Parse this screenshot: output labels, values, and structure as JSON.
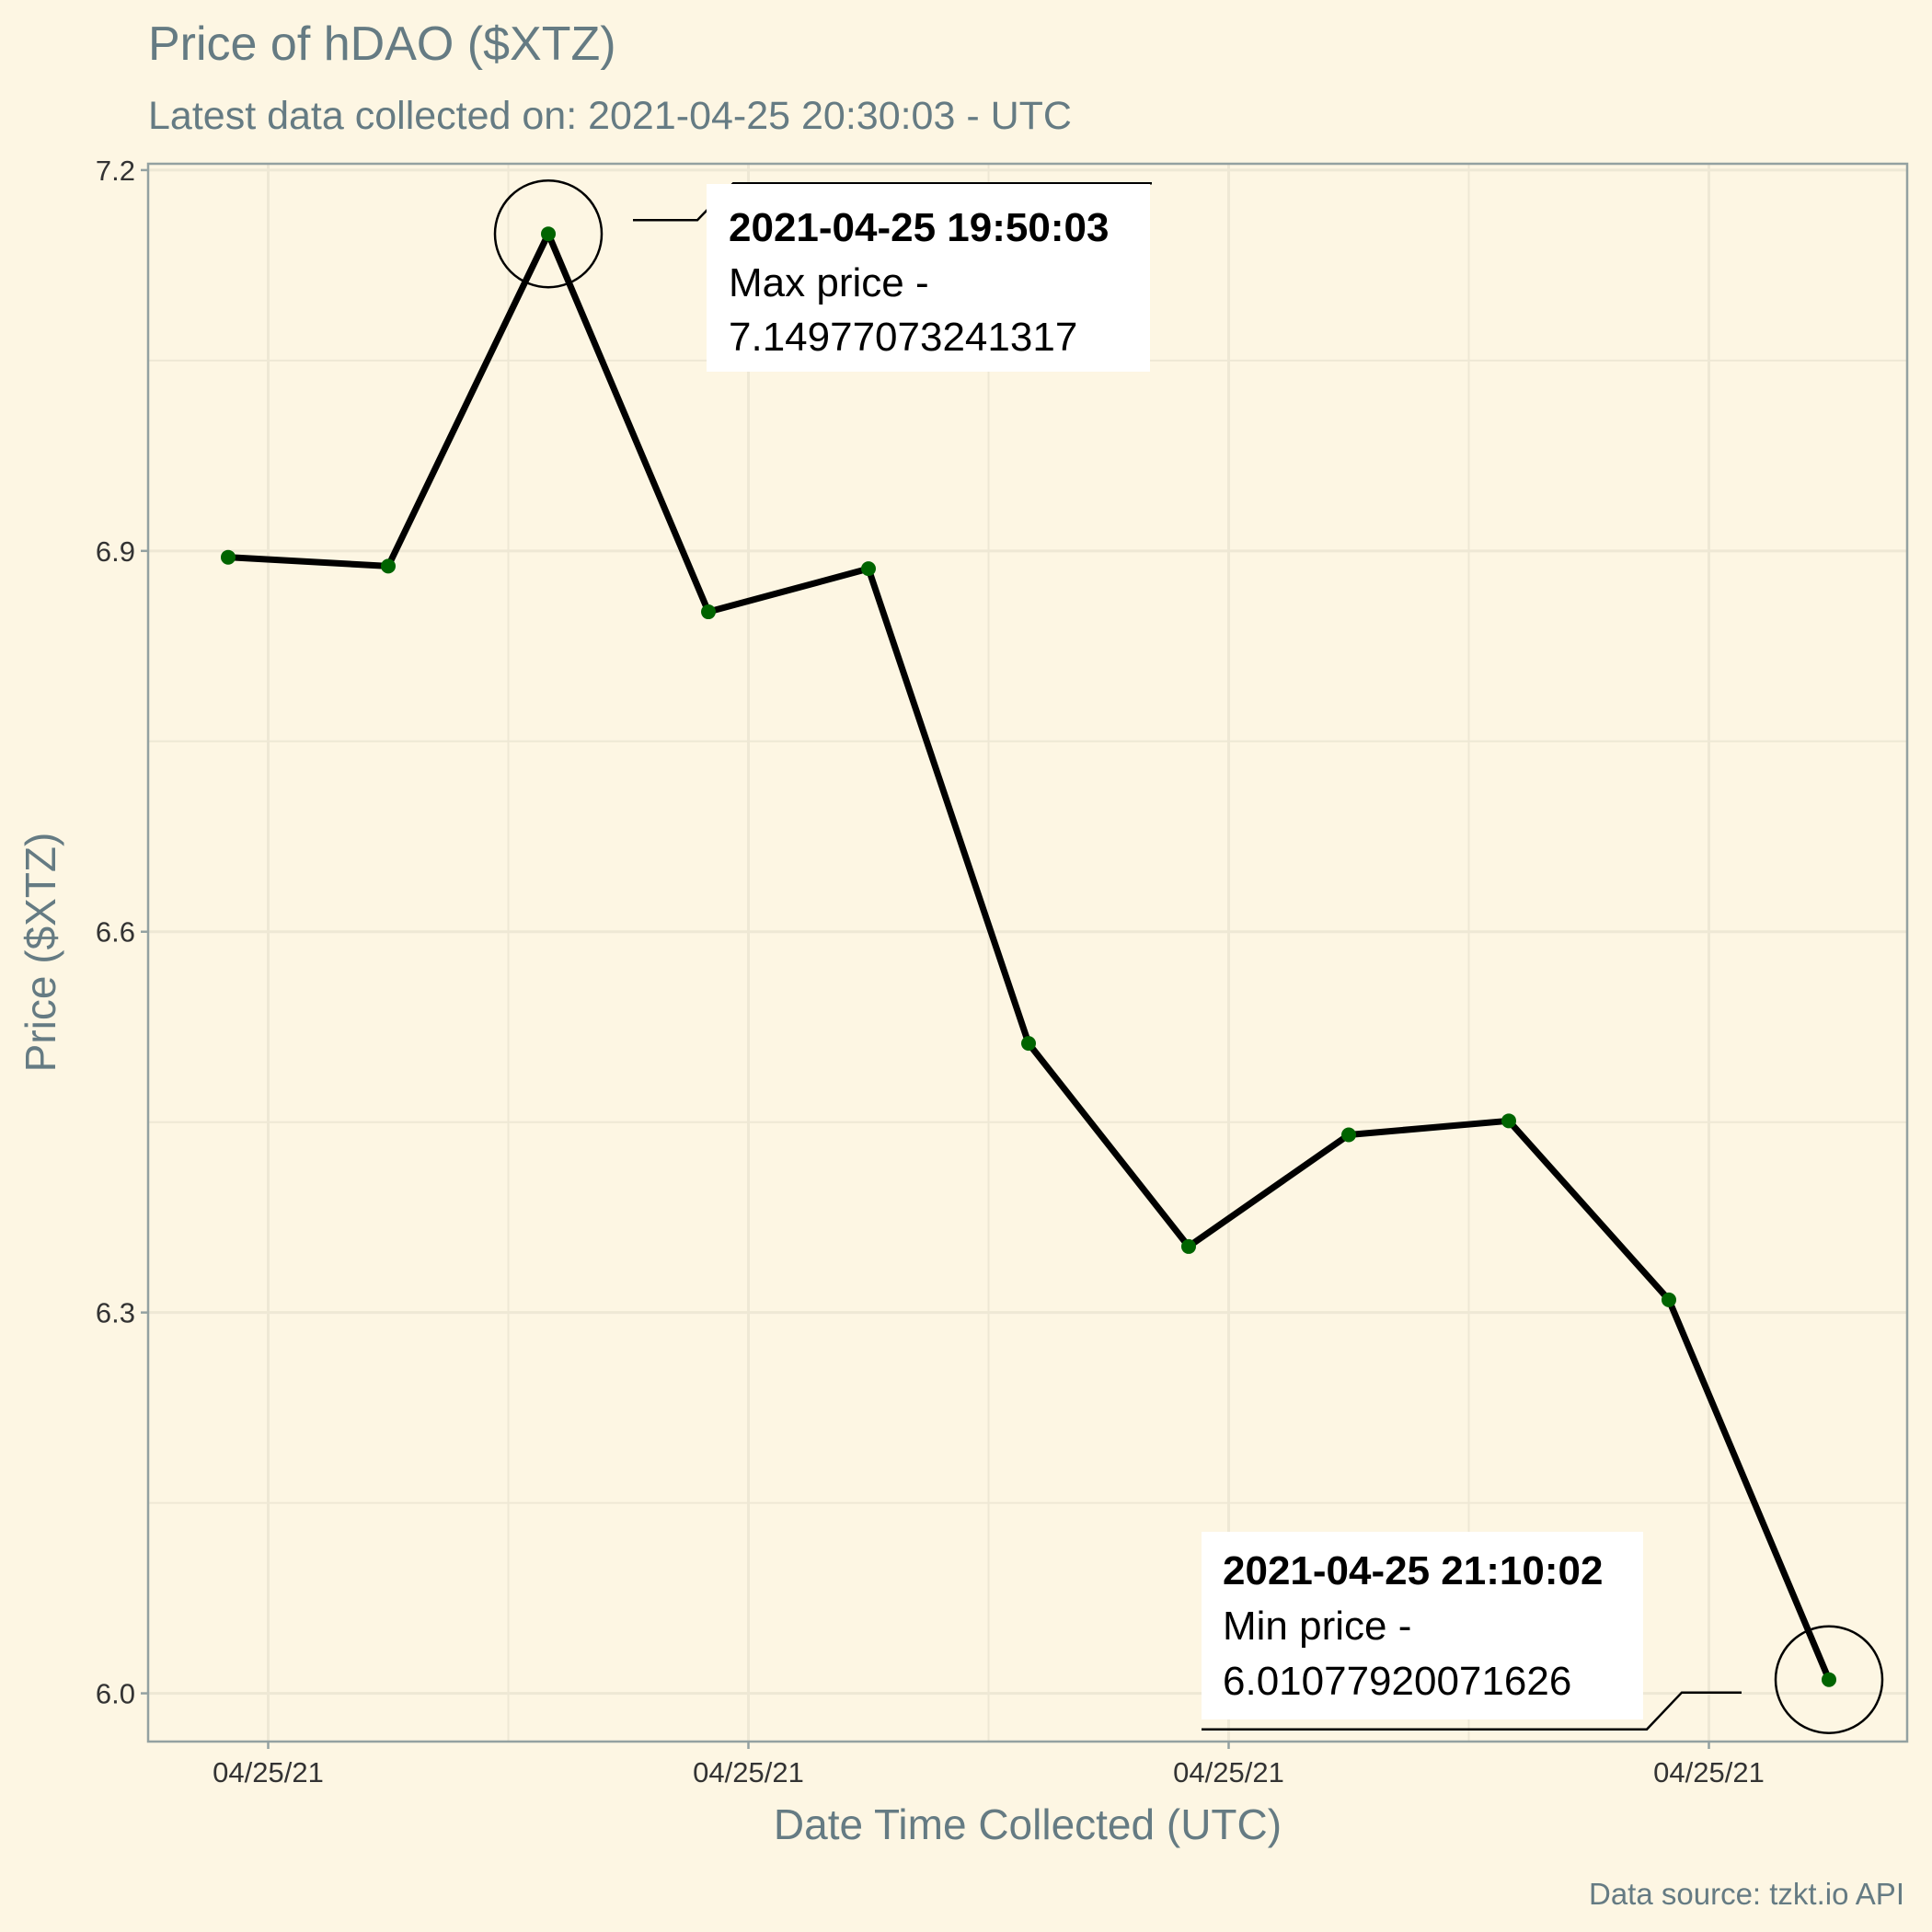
{
  "chart_data": {
    "type": "line",
    "title": "Price of hDAO ($XTZ)",
    "subtitle": "Latest data collected on: 2021-04-25 20:30:03  - UTC",
    "xlabel": "Date Time Collected (UTC)",
    "ylabel": "Price ($XTZ)",
    "caption": "Data source: tzkt.io API",
    "x_tick_labels": [
      "04/25/21",
      "04/25/21",
      "04/25/21",
      "04/25/21"
    ],
    "y_ticks": [
      6.0,
      6.3,
      6.6,
      6.9,
      7.2
    ],
    "y_tick_labels": [
      "6.0",
      "6.3",
      "6.6",
      "6.9",
      "7.2"
    ],
    "ylim": [
      5.962,
      7.205
    ],
    "grid": true,
    "line_color": "#000000",
    "point_color": "#006400",
    "background_color": "#fdf6e3",
    "points": [
      {
        "time": "2021-04-25 19:30",
        "value": 6.895
      },
      {
        "time": "2021-04-25 19:40",
        "value": 6.888
      },
      {
        "time": "2021-04-25 19:50:03",
        "value": 7.14977073241317
      },
      {
        "time": "2021-04-25 20:00",
        "value": 6.852
      },
      {
        "time": "2021-04-25 20:10",
        "value": 6.886
      },
      {
        "time": "2021-04-25 20:20",
        "value": 6.512
      },
      {
        "time": "2021-04-25 20:30",
        "value": 6.352
      },
      {
        "time": "2021-04-25 20:40",
        "value": 6.44
      },
      {
        "time": "2021-04-25 20:50",
        "value": 6.451
      },
      {
        "time": "2021-04-25 21:00",
        "value": 6.31
      },
      {
        "time": "2021-04-25 21:10:02",
        "value": 6.01077920071626
      }
    ],
    "annotations": {
      "max": {
        "time_label": "2021-04-25 19:50:03",
        "label": "Max price -",
        "value_text": "7.14977073241317"
      },
      "min": {
        "time_label": "2021-04-25 21:10:02",
        "label": "Min price -",
        "value_text": "6.01077920071626"
      }
    }
  }
}
